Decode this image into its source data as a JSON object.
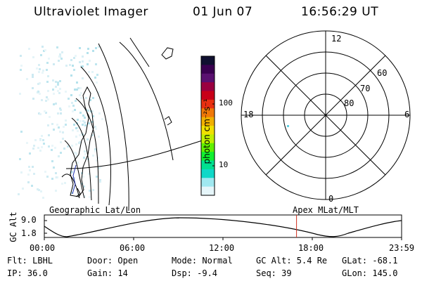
{
  "header": {
    "title": "Ultraviolet Imager",
    "date": "01 Jun 07",
    "time": "16:56:29 UT"
  },
  "colorbar": {
    "label": "photon cm⁻²s⁻¹",
    "ticks": [
      "100",
      "10"
    ],
    "colors": [
      "#101030",
      "#3a0050",
      "#5a1070",
      "#9a0040",
      "#c80018",
      "#e83010",
      "#f07808",
      "#f0b000",
      "#f0e000",
      "#c0f000",
      "#60f000",
      "#10f030",
      "#00e090",
      "#10d8c8",
      "#a0e8f0",
      "#e6f6fa"
    ]
  },
  "geo_panel": {
    "label": "Geographic Lat/Lon"
  },
  "polar": {
    "label": "Apex MLat/MLT",
    "mlt_labels": [
      "12",
      "18",
      "6",
      "0"
    ],
    "lat_labels": [
      "60",
      "70",
      "80"
    ],
    "spot_color": "#5fd0e0"
  },
  "altitude": {
    "axis_title": "GC Alt",
    "y_ticks": [
      "9.0",
      "1.8"
    ],
    "x_ticks": [
      "00:00",
      "06:00",
      "12:00",
      "18:00",
      "23:59"
    ],
    "marker_color": "#d03020",
    "marker_time_hours": 16.94
  },
  "status": {
    "row1": [
      {
        "key": "flt",
        "text": "Flt: LBHL"
      },
      {
        "key": "door",
        "text": "Door: Open"
      },
      {
        "key": "mode",
        "text": "Mode: Normal"
      },
      {
        "key": "gcalt",
        "text": "GC Alt: 5.4 Re"
      },
      {
        "key": "glat",
        "text": "GLat: -68.1"
      }
    ],
    "row2": [
      {
        "key": "ip",
        "text": "IP: 36.0"
      },
      {
        "key": "gain",
        "text": "Gain: 14"
      },
      {
        "key": "dsp",
        "text": "Dsp:  -9.4"
      },
      {
        "key": "seq",
        "text": "Seq: 39"
      },
      {
        "key": "glon",
        "text": "GLon: 145.0"
      }
    ]
  }
}
